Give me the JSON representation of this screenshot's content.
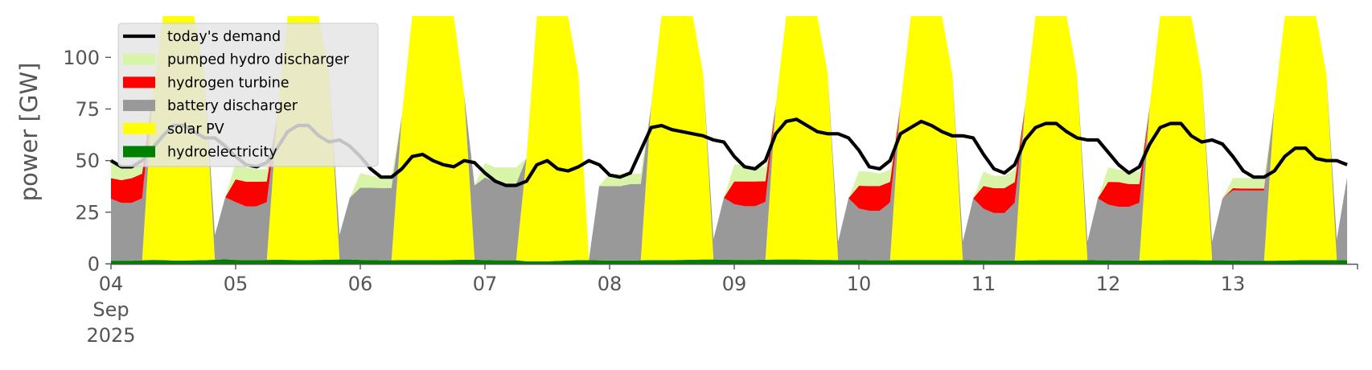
{
  "chart_data": {
    "type": "area",
    "title": "",
    "ylabel": "power [GW]",
    "xlabel": "",
    "ylim": [
      0,
      120
    ],
    "yticks": [
      0,
      25,
      50,
      75,
      100
    ],
    "x_start": "2025-09-04T00:00",
    "x_end": "2025-09-13T23:00",
    "x_step_hours": 2,
    "xtick_labels": [
      {
        "date": "2025-09-04",
        "lines": [
          "04",
          "Sep",
          "2025"
        ]
      },
      {
        "date": "2025-09-05",
        "lines": [
          "05"
        ]
      },
      {
        "date": "2025-09-06",
        "lines": [
          "06"
        ]
      },
      {
        "date": "2025-09-07",
        "lines": [
          "07"
        ]
      },
      {
        "date": "2025-09-08",
        "lines": [
          "08"
        ]
      },
      {
        "date": "2025-09-09",
        "lines": [
          "09"
        ]
      },
      {
        "date": "2025-09-10",
        "lines": [
          "10"
        ]
      },
      {
        "date": "2025-09-11",
        "lines": [
          "11"
        ]
      },
      {
        "date": "2025-09-12",
        "lines": [
          "12"
        ]
      },
      {
        "date": "2025-09-13",
        "lines": [
          "13"
        ]
      }
    ],
    "grid": false,
    "legend_position": "top-left",
    "stack_order": [
      "hydroelectricity",
      "solar PV",
      "battery discharger",
      "hydrogen turbine",
      "pumped hydro discharger"
    ],
    "series": [
      {
        "name": "today's demand",
        "kind": "line",
        "color": "#000000",
        "values": [
          50,
          47,
          47,
          50,
          56,
          62,
          67,
          67,
          64,
          61,
          61,
          57,
          52,
          48,
          47,
          49,
          56,
          64,
          67,
          67,
          62,
          59,
          60,
          57,
          52,
          46,
          42,
          42,
          46,
          52,
          53,
          50,
          48,
          47,
          50,
          49,
          44,
          40,
          38,
          38,
          40,
          48,
          50,
          46,
          45,
          47,
          50,
          48,
          43,
          42,
          44,
          55,
          66,
          67,
          65,
          64,
          63,
          62,
          60,
          59,
          52,
          47,
          46,
          50,
          63,
          69,
          70,
          67,
          64,
          63,
          63,
          61,
          55,
          47,
          46,
          50,
          63,
          66,
          69,
          67,
          64,
          62,
          62,
          61,
          53,
          46,
          44,
          48,
          60,
          66,
          68,
          68,
          64,
          61,
          60,
          60,
          54,
          48,
          44,
          47,
          58,
          66,
          68,
          68,
          62,
          59,
          60,
          58,
          52,
          45,
          42,
          42,
          45,
          52,
          56,
          56,
          51,
          50,
          50,
          48
        ]
      },
      {
        "name": "pumped hydro discharger",
        "kind": "area",
        "color": "#d8f4a8",
        "values": [
          8,
          7,
          6,
          6,
          0,
          0,
          0,
          0,
          0,
          0,
          0,
          0,
          8,
          7,
          6,
          6,
          0,
          0,
          0,
          0,
          0,
          0,
          0,
          0,
          7,
          6,
          5,
          5,
          0,
          0,
          0,
          0,
          0,
          0,
          0,
          0,
          7,
          7,
          8,
          8,
          0,
          0,
          0,
          0,
          0,
          0,
          0,
          0,
          6,
          6,
          5,
          5,
          0,
          0,
          0,
          0,
          0,
          0,
          0,
          0,
          8,
          8,
          7,
          7,
          0,
          0,
          0,
          0,
          0,
          0,
          0,
          0,
          7,
          7,
          6,
          6,
          0,
          0,
          0,
          0,
          0,
          0,
          0,
          0,
          7,
          6,
          6,
          6,
          0,
          0,
          0,
          0,
          0,
          0,
          0,
          0,
          7,
          6,
          6,
          6,
          0,
          0,
          0,
          0,
          0,
          0,
          0,
          0,
          5,
          5,
          5,
          5,
          0,
          0,
          0,
          0,
          0,
          0,
          0,
          0
        ]
      },
      {
        "name": "hydrogen turbine",
        "kind": "area",
        "color": "#ff0000",
        "values": [
          10,
          11,
          12,
          12,
          0,
          0,
          0,
          0,
          0,
          0,
          0,
          0,
          11,
          12,
          12,
          10,
          0,
          0,
          0,
          0,
          0,
          0,
          0,
          0,
          0,
          0,
          0,
          0,
          0,
          0,
          0,
          0,
          0,
          0,
          0,
          0,
          0,
          0,
          0,
          0,
          0,
          0,
          0,
          0,
          0,
          0,
          0,
          0,
          0,
          0,
          0,
          0,
          0,
          0,
          0,
          0,
          0,
          0,
          0,
          0,
          11,
          12,
          12,
          10,
          0,
          0,
          0,
          0,
          0,
          0,
          0,
          0,
          11,
          12,
          12,
          10,
          0,
          0,
          0,
          0,
          0,
          0,
          0,
          0,
          11,
          12,
          12,
          10,
          0,
          0,
          0,
          0,
          0,
          0,
          0,
          0,
          11,
          12,
          11,
          9,
          0,
          0,
          0,
          0,
          0,
          0,
          0,
          0,
          1,
          1,
          1,
          1,
          0,
          0,
          0,
          0,
          0,
          0,
          0,
          0
        ]
      },
      {
        "name": "battery discharger",
        "kind": "area",
        "color": "#999999",
        "values": [
          30,
          28,
          28,
          30,
          0,
          0,
          0,
          0,
          0,
          0,
          12,
          30,
          28,
          26,
          26,
          28,
          0,
          0,
          0,
          0,
          0,
          0,
          12,
          30,
          35,
          35,
          35,
          35,
          0,
          0,
          0,
          0,
          0,
          0,
          0,
          36,
          40,
          38,
          37,
          37,
          0,
          0,
          0,
          0,
          0,
          0,
          0,
          36,
          36,
          36,
          37,
          37,
          0,
          0,
          0,
          0,
          0,
          0,
          10,
          30,
          27,
          26,
          26,
          28,
          0,
          0,
          0,
          0,
          0,
          0,
          9,
          30,
          25,
          24,
          24,
          28,
          0,
          0,
          0,
          0,
          0,
          0,
          9,
          30,
          25,
          23,
          23,
          28,
          0,
          0,
          0,
          0,
          0,
          0,
          9,
          30,
          27,
          26,
          26,
          28,
          0,
          0,
          0,
          0,
          0,
          0,
          9,
          30,
          34,
          34,
          34,
          34,
          0,
          0,
          0,
          0,
          0,
          0,
          10,
          40
        ]
      },
      {
        "name": "solar PV",
        "kind": "area",
        "color": "#ffff00",
        "values": [
          0,
          0,
          0,
          0,
          80,
          120,
          120,
          120,
          120,
          90,
          0,
          0,
          0,
          0,
          0,
          0,
          70,
          120,
          120,
          120,
          120,
          90,
          0,
          0,
          0,
          0,
          0,
          0,
          70,
          120,
          120,
          120,
          120,
          120,
          80,
          0,
          0,
          0,
          0,
          0,
          50,
          120,
          120,
          120,
          120,
          90,
          0,
          0,
          0,
          0,
          0,
          0,
          75,
          120,
          120,
          120,
          120,
          90,
          0,
          0,
          0,
          0,
          0,
          0,
          75,
          120,
          120,
          120,
          120,
          90,
          0,
          0,
          0,
          0,
          0,
          0,
          75,
          120,
          120,
          120,
          120,
          90,
          0,
          0,
          0,
          0,
          0,
          0,
          75,
          120,
          120,
          120,
          120,
          90,
          0,
          0,
          0,
          0,
          0,
          0,
          75,
          120,
          120,
          120,
          120,
          90,
          0,
          0,
          0,
          0,
          0,
          0,
          75,
          120,
          120,
          120,
          120,
          90,
          0,
          0
        ]
      },
      {
        "name": "hydroelectricity",
        "kind": "area",
        "color": "#008000",
        "values": [
          1.5,
          1.5,
          1.5,
          1.7,
          1.9,
          1.8,
          1.6,
          1.6,
          1.7,
          1.8,
          2.0,
          2.2,
          1.9,
          1.8,
          1.8,
          1.9,
          2.0,
          1.9,
          1.8,
          1.8,
          1.9,
          2.0,
          2.1,
          2.1,
          1.9,
          1.8,
          1.7,
          1.7,
          1.8,
          1.8,
          1.8,
          1.8,
          1.8,
          1.9,
          2.0,
          2.0,
          1.8,
          1.7,
          1.7,
          1.7,
          1.2,
          1.2,
          1.2,
          1.4,
          1.6,
          1.8,
          1.8,
          1.7,
          1.6,
          1.6,
          1.6,
          1.7,
          1.8,
          1.8,
          1.8,
          1.9,
          2.0,
          2.1,
          2.1,
          2.0,
          1.9,
          1.9,
          1.9,
          2.0,
          2.1,
          2.1,
          2.1,
          2.0,
          1.9,
          1.9,
          1.8,
          1.8,
          1.8,
          1.7,
          1.7,
          1.7,
          1.8,
          1.8,
          1.8,
          1.8,
          1.8,
          1.8,
          1.8,
          1.7,
          1.7,
          1.6,
          1.6,
          1.6,
          1.7,
          1.7,
          1.8,
          1.8,
          1.8,
          1.8,
          1.8,
          1.7,
          1.7,
          1.6,
          1.6,
          1.6,
          1.7,
          1.7,
          1.8,
          1.8,
          1.8,
          1.7,
          1.7,
          1.7,
          1.6,
          1.5,
          1.5,
          1.5,
          1.5,
          1.6,
          1.7,
          1.8,
          1.8,
          1.8,
          1.8,
          1.8
        ]
      }
    ],
    "legend": [
      {
        "label": "today's demand",
        "color": "#000000",
        "kind": "line"
      },
      {
        "label": "pumped hydro discharger",
        "color": "#d8f4a8",
        "kind": "area"
      },
      {
        "label": "hydrogen turbine",
        "color": "#ff0000",
        "kind": "area"
      },
      {
        "label": "battery discharger",
        "color": "#999999",
        "kind": "area"
      },
      {
        "label": "solar PV",
        "color": "#ffff00",
        "kind": "area"
      },
      {
        "label": "hydroelectricity",
        "color": "#008000",
        "kind": "area"
      }
    ]
  }
}
